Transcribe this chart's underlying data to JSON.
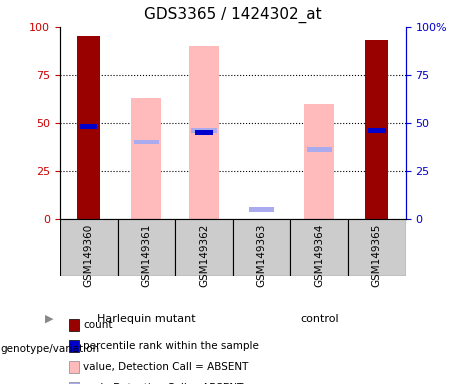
{
  "title": "GDS3365 / 1424302_at",
  "samples": [
    "GSM149360",
    "GSM149361",
    "GSM149362",
    "GSM149363",
    "GSM149364",
    "GSM149365"
  ],
  "red_bars": [
    95,
    0,
    0,
    0,
    0,
    93
  ],
  "blue_markers": [
    48,
    0,
    45,
    0,
    0,
    46
  ],
  "pink_bars": [
    0,
    63,
    90,
    0,
    60,
    0
  ],
  "lavender_markers": [
    0,
    40,
    46,
    5,
    36,
    0
  ],
  "ylim": [
    0,
    100
  ],
  "left_yticks": [
    0,
    25,
    50,
    75,
    100
  ],
  "right_ytick_labels": [
    "0",
    "25",
    "50",
    "75",
    "100%"
  ],
  "left_axis_color": "#cc0000",
  "right_axis_color": "#0000cc",
  "bar_width": 0.4,
  "red_bar_color": "#990000",
  "pink_bar_color": "#ffbbbb",
  "blue_marker_color": "#0000cc",
  "lavender_marker_color": "#aaaaee",
  "group_defs": [
    {
      "label": "Harlequin mutant",
      "start": 0,
      "end": 3,
      "color": "#66ee66"
    },
    {
      "label": "control",
      "start": 3,
      "end": 6,
      "color": "#66ee66"
    }
  ],
  "legend_items": [
    {
      "label": "count",
      "color": "#990000",
      "border": true
    },
    {
      "label": "percentile rank within the sample",
      "color": "#0000cc",
      "border": true
    },
    {
      "label": "value, Detection Call = ABSENT",
      "color": "#ffbbbb",
      "border": false
    },
    {
      "label": "rank, Detection Call = ABSENT",
      "color": "#aaaaee",
      "border": false
    }
  ],
  "genotype_label": "genotype/variation",
  "sample_box_color": "#cccccc",
  "title_fontsize": 11,
  "tick_fontsize": 8,
  "sample_fontsize": 7.5,
  "legend_fontsize": 7.5,
  "group_fontsize": 8
}
